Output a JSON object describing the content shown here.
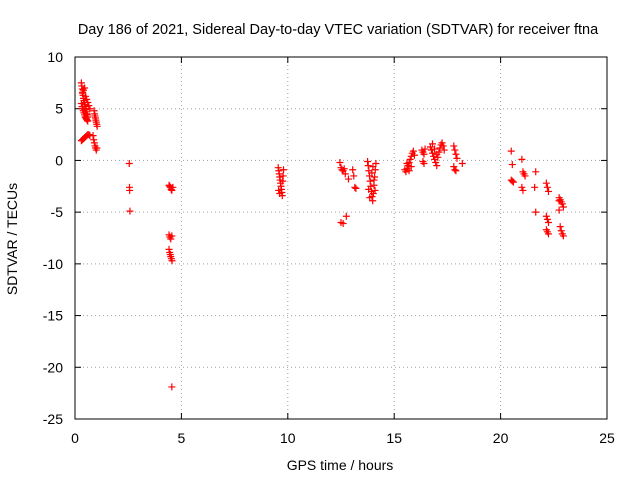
{
  "chart_data": {
    "type": "scatter",
    "title": "Day 186 of 2021, Sidereal Day-to-day VTEC variation (SDTVAR) for receiver ftna",
    "xlabel": "GPS time / hours",
    "ylabel": "SDTVAR / TECUs",
    "xlim": [
      0,
      25
    ],
    "ylim": [
      -25,
      10
    ],
    "xticks": [
      0,
      5,
      10,
      15,
      20,
      25
    ],
    "yticks": [
      -25,
      -20,
      -15,
      -10,
      -5,
      0,
      5,
      10
    ],
    "grid": true,
    "marker": "+",
    "color": "#ff0000",
    "series": [
      {
        "name": "SDTVAR",
        "points": [
          [
            0.3,
            7.5
          ],
          [
            0.32,
            7.2
          ],
          [
            0.34,
            6.9
          ],
          [
            0.36,
            6.6
          ],
          [
            0.38,
            6.3
          ],
          [
            0.4,
            6.0
          ],
          [
            0.42,
            5.8
          ],
          [
            0.44,
            5.6
          ],
          [
            0.46,
            5.4
          ],
          [
            0.48,
            5.2
          ],
          [
            0.5,
            5.0
          ],
          [
            0.52,
            4.9
          ],
          [
            0.54,
            4.7
          ],
          [
            0.56,
            4.5
          ],
          [
            0.58,
            4.4
          ],
          [
            0.6,
            4.2
          ],
          [
            0.3,
            5.5
          ],
          [
            0.33,
            5.2
          ],
          [
            0.36,
            5.0
          ],
          [
            0.39,
            4.8
          ],
          [
            0.42,
            4.6
          ],
          [
            0.45,
            4.4
          ],
          [
            0.48,
            4.2
          ],
          [
            0.51,
            4.1
          ],
          [
            0.54,
            4.0
          ],
          [
            0.57,
            3.9
          ],
          [
            0.6,
            3.8
          ],
          [
            0.35,
            6.5
          ],
          [
            0.4,
            6.8
          ],
          [
            0.45,
            7.0
          ],
          [
            0.5,
            6.2
          ],
          [
            0.55,
            5.9
          ],
          [
            0.6,
            5.6
          ],
          [
            0.65,
            5.3
          ],
          [
            0.7,
            5.0
          ],
          [
            0.3,
            1.9
          ],
          [
            0.35,
            2.0
          ],
          [
            0.4,
            2.1
          ],
          [
            0.45,
            2.2
          ],
          [
            0.5,
            2.3
          ],
          [
            0.55,
            2.4
          ],
          [
            0.6,
            2.5
          ],
          [
            0.65,
            2.5
          ],
          [
            0.7,
            2.4
          ],
          [
            0.9,
            4.8
          ],
          [
            0.92,
            4.5
          ],
          [
            0.94,
            4.3
          ],
          [
            0.96,
            4.1
          ],
          [
            0.98,
            3.9
          ],
          [
            1.0,
            3.7
          ],
          [
            1.02,
            3.5
          ],
          [
            1.04,
            3.3
          ],
          [
            0.85,
            2.4
          ],
          [
            0.88,
            2.0
          ],
          [
            0.91,
            1.7
          ],
          [
            0.94,
            1.4
          ],
          [
            0.97,
            1.2
          ],
          [
            1.0,
            1.0
          ],
          [
            1.03,
            1.2
          ],
          [
            2.55,
            -0.3
          ],
          [
            2.56,
            -2.6
          ],
          [
            2.57,
            -2.9
          ],
          [
            2.58,
            -4.9
          ],
          [
            4.42,
            -2.4
          ],
          [
            4.45,
            -2.5
          ],
          [
            4.48,
            -2.6
          ],
          [
            4.52,
            -2.8
          ],
          [
            4.55,
            -2.9
          ],
          [
            4.6,
            -2.6
          ],
          [
            4.42,
            -7.2
          ],
          [
            4.46,
            -7.4
          ],
          [
            4.5,
            -7.6
          ],
          [
            4.55,
            -7.3
          ],
          [
            4.42,
            -8.6
          ],
          [
            4.45,
            -8.9
          ],
          [
            4.48,
            -9.1
          ],
          [
            4.5,
            -9.3
          ],
          [
            4.53,
            -9.5
          ],
          [
            4.56,
            -9.7
          ],
          [
            4.55,
            -21.9
          ],
          [
            9.55,
            -0.7
          ],
          [
            9.58,
            -1.0
          ],
          [
            9.6,
            -1.3
          ],
          [
            9.62,
            -1.6
          ],
          [
            9.64,
            -1.9
          ],
          [
            9.66,
            -2.2
          ],
          [
            9.68,
            -2.5
          ],
          [
            9.7,
            -2.8
          ],
          [
            9.72,
            -3.1
          ],
          [
            9.74,
            -3.4
          ],
          [
            9.76,
            -2.0
          ],
          [
            9.78,
            -1.5
          ],
          [
            9.8,
            -0.9
          ],
          [
            9.57,
            -2.9
          ],
          [
            9.62,
            -3.2
          ],
          [
            12.45,
            -0.2
          ],
          [
            12.5,
            -0.7
          ],
          [
            12.55,
            -0.9
          ],
          [
            12.6,
            -1.0
          ],
          [
            12.65,
            -0.8
          ],
          [
            12.5,
            -6.0
          ],
          [
            12.6,
            -6.1
          ],
          [
            12.75,
            -5.4
          ],
          [
            12.85,
            -1.8
          ],
          [
            12.7,
            -1.3
          ],
          [
            13.05,
            -0.9
          ],
          [
            13.1,
            -1.5
          ],
          [
            13.15,
            -2.6
          ],
          [
            13.2,
            -2.7
          ],
          [
            13.75,
            -0.1
          ],
          [
            13.78,
            -0.5
          ],
          [
            13.81,
            -1.0
          ],
          [
            13.84,
            -1.5
          ],
          [
            13.87,
            -2.0
          ],
          [
            13.9,
            -2.5
          ],
          [
            13.93,
            -3.0
          ],
          [
            13.96,
            -3.5
          ],
          [
            13.99,
            -3.9
          ],
          [
            14.02,
            -3.2
          ],
          [
            14.05,
            -2.4
          ],
          [
            14.08,
            -1.6
          ],
          [
            14.11,
            -0.9
          ],
          [
            14.14,
            -0.3
          ],
          [
            13.8,
            -2.8
          ],
          [
            13.85,
            -3.6
          ],
          [
            13.95,
            -1.2
          ],
          [
            14.0,
            -0.6
          ],
          [
            14.05,
            -1.9
          ],
          [
            14.1,
            -2.9
          ],
          [
            15.5,
            -0.9
          ],
          [
            15.55,
            -1.1
          ],
          [
            15.6,
            -0.8
          ],
          [
            15.65,
            -0.5
          ],
          [
            15.7,
            -0.2
          ],
          [
            15.75,
            0.1
          ],
          [
            15.8,
            0.4
          ],
          [
            15.85,
            0.7
          ],
          [
            15.9,
            0.9
          ],
          [
            15.95,
            0.5
          ],
          [
            15.6,
            -0.3
          ],
          [
            15.7,
            -1.0
          ],
          [
            15.8,
            -0.6
          ],
          [
            16.3,
            1.0
          ],
          [
            16.35,
            0.8
          ],
          [
            16.4,
            0.6
          ],
          [
            16.45,
            1.1
          ],
          [
            16.35,
            -0.1
          ],
          [
            16.4,
            -0.3
          ],
          [
            16.7,
            1.3
          ],
          [
            16.75,
            1.0
          ],
          [
            16.8,
            0.7
          ],
          [
            16.85,
            0.4
          ],
          [
            16.9,
            0.1
          ],
          [
            16.95,
            -0.2
          ],
          [
            17.0,
            -0.5
          ],
          [
            17.05,
            0.3
          ],
          [
            17.1,
            0.8
          ],
          [
            17.15,
            1.2
          ],
          [
            17.2,
            1.5
          ],
          [
            17.25,
            1.7
          ],
          [
            17.3,
            1.4
          ],
          [
            17.35,
            1.0
          ],
          [
            16.8,
            1.6
          ],
          [
            16.9,
            1.1
          ],
          [
            17.0,
            0.6
          ],
          [
            17.8,
            1.4
          ],
          [
            17.85,
            1.0
          ],
          [
            17.9,
            0.6
          ],
          [
            17.95,
            0.2
          ],
          [
            17.8,
            -0.6
          ],
          [
            17.85,
            -0.9
          ],
          [
            17.9,
            -1.0
          ],
          [
            18.2,
            -0.3
          ],
          [
            20.5,
            0.9
          ],
          [
            20.55,
            -0.4
          ],
          [
            20.5,
            -1.9
          ],
          [
            20.55,
            -2.0
          ],
          [
            20.6,
            -2.1
          ],
          [
            21.0,
            0.1
          ],
          [
            21.05,
            -1.1
          ],
          [
            21.1,
            -1.3
          ],
          [
            21.15,
            -1.5
          ],
          [
            21.0,
            -2.6
          ],
          [
            21.05,
            -2.9
          ],
          [
            21.65,
            -1.1
          ],
          [
            21.6,
            -2.6
          ],
          [
            21.65,
            -5.0
          ],
          [
            22.15,
            -2.2
          ],
          [
            22.2,
            -2.6
          ],
          [
            22.25,
            -3.0
          ],
          [
            22.15,
            -5.4
          ],
          [
            22.2,
            -5.7
          ],
          [
            22.25,
            -6.0
          ],
          [
            22.15,
            -6.7
          ],
          [
            22.2,
            -6.9
          ],
          [
            22.25,
            -7.1
          ],
          [
            22.75,
            -3.6
          ],
          [
            22.8,
            -3.8
          ],
          [
            22.85,
            -4.0
          ],
          [
            22.9,
            -4.2
          ],
          [
            22.95,
            -4.5
          ],
          [
            22.75,
            -4.8
          ],
          [
            22.8,
            -6.4
          ],
          [
            22.85,
            -6.8
          ],
          [
            22.9,
            -7.1
          ],
          [
            22.95,
            -7.3
          ],
          [
            22.75,
            -3.9
          ]
        ]
      }
    ]
  }
}
